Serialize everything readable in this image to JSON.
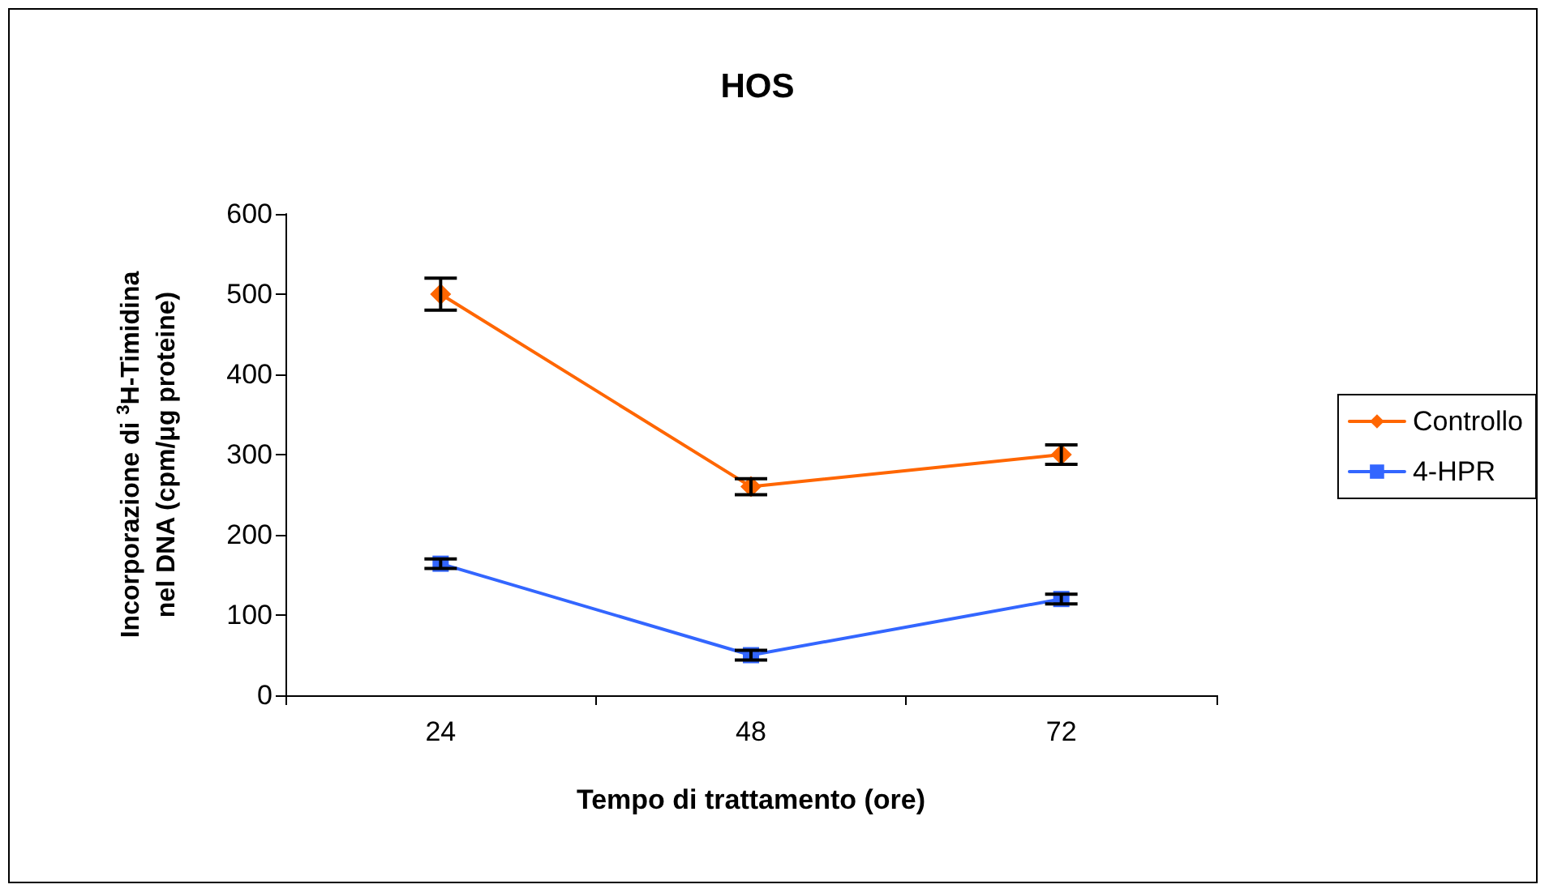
{
  "chart_data": {
    "type": "line",
    "title": "HOS",
    "xlabel": "Tempo di trattamento (ore)",
    "ylabel": "Incorporazione di $^{3}$H-Timidina\nnel DNA (cpm/μg proteine)",
    "categories": [
      "24",
      "48",
      "72"
    ],
    "series": [
      {
        "name": "Controllo",
        "color": "#ff6600",
        "marker": "diamond",
        "values": [
          500,
          260,
          300
        ],
        "errors": [
          20,
          10,
          12
        ]
      },
      {
        "name": "4-HPR",
        "color": "#3366ff",
        "marker": "square",
        "values": [
          164,
          50,
          120
        ],
        "errors": [
          6,
          6,
          6
        ]
      }
    ],
    "ylim": [
      0,
      600
    ],
    "yticks": [
      0,
      100,
      200,
      300,
      400,
      500,
      600
    ],
    "grid": false,
    "legend": "right",
    "line_style": "solid"
  }
}
